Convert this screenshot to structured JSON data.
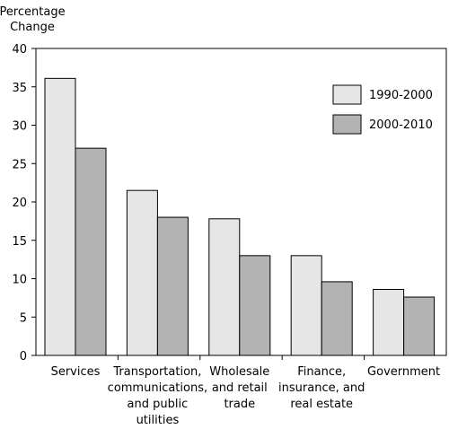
{
  "chart_data": {
    "type": "bar",
    "ylabel": "Percentage\nChange",
    "ylim": [
      0,
      40
    ],
    "yticks": [
      "0",
      "5",
      "10",
      "15",
      "20",
      "25",
      "30",
      "35",
      "40"
    ],
    "categories": [
      "Services",
      "Transportation,\ncommunications,\nand public\nutilities",
      "Wholesale\nand retail\ntrade",
      "Finance,\ninsurance, and\nreal estate",
      "Government"
    ],
    "series": [
      {
        "name": "1990-2000",
        "color": "#e6e6e6",
        "values": [
          36.1,
          21.5,
          17.8,
          13.0,
          8.6
        ]
      },
      {
        "name": "2000-2010",
        "color": "#b3b3b3",
        "values": [
          27.0,
          18.0,
          13.0,
          9.6,
          7.6
        ]
      }
    ],
    "legend": "top-right",
    "grid": false
  }
}
